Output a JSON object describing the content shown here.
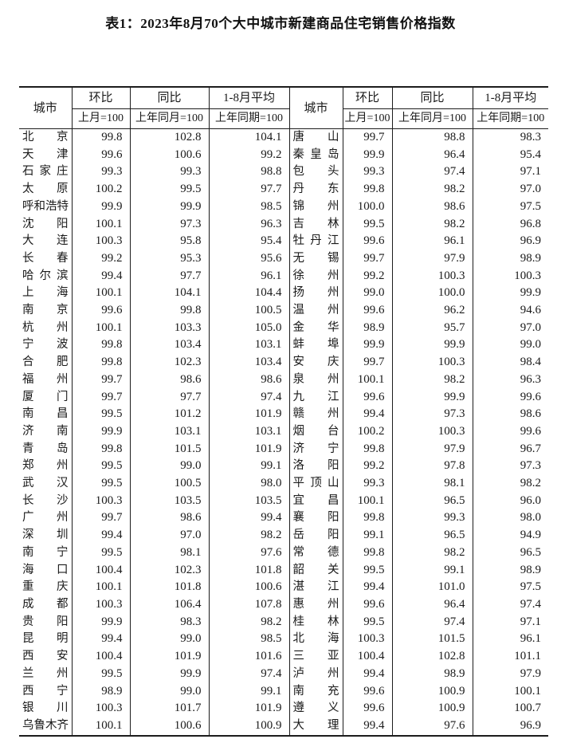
{
  "title": "表1：2023年8月70个大中城市新建商品住宅销售价格指数",
  "table": {
    "headers": {
      "city": "城市",
      "mom": "环比",
      "yoy": "同比",
      "avg": "1-8月平均",
      "mom_base": "上月=100",
      "yoy_base": "上年同月=100",
      "avg_base": "上年同期=100"
    },
    "left_rows": [
      {
        "city": "北京",
        "mom": "99.8",
        "yoy": "102.8",
        "avg": "104.1"
      },
      {
        "city": "天津",
        "mom": "99.6",
        "yoy": "100.6",
        "avg": "99.2"
      },
      {
        "city": "石家庄",
        "mom": "99.3",
        "yoy": "99.3",
        "avg": "98.8"
      },
      {
        "city": "太原",
        "mom": "100.2",
        "yoy": "99.5",
        "avg": "97.7"
      },
      {
        "city": "呼和浩特",
        "mom": "99.9",
        "yoy": "99.9",
        "avg": "98.5"
      },
      {
        "city": "沈阳",
        "mom": "100.1",
        "yoy": "97.3",
        "avg": "96.3"
      },
      {
        "city": "大连",
        "mom": "100.3",
        "yoy": "95.8",
        "avg": "95.4"
      },
      {
        "city": "长春",
        "mom": "99.2",
        "yoy": "95.3",
        "avg": "95.6"
      },
      {
        "city": "哈尔滨",
        "mom": "99.4",
        "yoy": "97.7",
        "avg": "96.1"
      },
      {
        "city": "上海",
        "mom": "100.1",
        "yoy": "104.1",
        "avg": "104.4"
      },
      {
        "city": "南京",
        "mom": "99.6",
        "yoy": "99.8",
        "avg": "100.5"
      },
      {
        "city": "杭州",
        "mom": "100.1",
        "yoy": "103.3",
        "avg": "105.0"
      },
      {
        "city": "宁波",
        "mom": "99.8",
        "yoy": "103.4",
        "avg": "103.1"
      },
      {
        "city": "合肥",
        "mom": "99.8",
        "yoy": "102.3",
        "avg": "103.4"
      },
      {
        "city": "福州",
        "mom": "99.7",
        "yoy": "98.6",
        "avg": "98.6"
      },
      {
        "city": "厦门",
        "mom": "99.7",
        "yoy": "97.7",
        "avg": "97.4"
      },
      {
        "city": "南昌",
        "mom": "99.5",
        "yoy": "101.2",
        "avg": "101.9"
      },
      {
        "city": "济南",
        "mom": "99.9",
        "yoy": "103.1",
        "avg": "103.1"
      },
      {
        "city": "青岛",
        "mom": "99.8",
        "yoy": "101.5",
        "avg": "101.9"
      },
      {
        "city": "郑州",
        "mom": "99.5",
        "yoy": "99.0",
        "avg": "99.1"
      },
      {
        "city": "武汉",
        "mom": "99.5",
        "yoy": "100.5",
        "avg": "98.0"
      },
      {
        "city": "长沙",
        "mom": "100.3",
        "yoy": "103.5",
        "avg": "103.5"
      },
      {
        "city": "广州",
        "mom": "99.7",
        "yoy": "98.6",
        "avg": "99.4"
      },
      {
        "city": "深圳",
        "mom": "99.4",
        "yoy": "97.0",
        "avg": "98.2"
      },
      {
        "city": "南宁",
        "mom": "99.5",
        "yoy": "98.1",
        "avg": "97.6"
      },
      {
        "city": "海口",
        "mom": "100.4",
        "yoy": "102.3",
        "avg": "101.8"
      },
      {
        "city": "重庆",
        "mom": "100.1",
        "yoy": "101.8",
        "avg": "100.6"
      },
      {
        "city": "成都",
        "mom": "100.3",
        "yoy": "106.4",
        "avg": "107.8"
      },
      {
        "city": "贵阳",
        "mom": "99.9",
        "yoy": "98.3",
        "avg": "98.2"
      },
      {
        "city": "昆明",
        "mom": "99.4",
        "yoy": "99.0",
        "avg": "98.5"
      },
      {
        "city": "西安",
        "mom": "100.4",
        "yoy": "101.9",
        "avg": "101.6"
      },
      {
        "city": "兰州",
        "mom": "99.5",
        "yoy": "99.9",
        "avg": "97.4"
      },
      {
        "city": "西宁",
        "mom": "98.9",
        "yoy": "99.0",
        "avg": "99.1"
      },
      {
        "city": "银川",
        "mom": "100.3",
        "yoy": "101.7",
        "avg": "101.9"
      },
      {
        "city": "乌鲁木齐",
        "mom": "100.1",
        "yoy": "100.6",
        "avg": "100.9"
      }
    ],
    "right_rows": [
      {
        "city": "唐山",
        "mom": "99.7",
        "yoy": "98.8",
        "avg": "98.3"
      },
      {
        "city": "秦皇岛",
        "mom": "99.9",
        "yoy": "96.4",
        "avg": "95.4"
      },
      {
        "city": "包头",
        "mom": "99.3",
        "yoy": "97.4",
        "avg": "97.1"
      },
      {
        "city": "丹东",
        "mom": "99.8",
        "yoy": "98.2",
        "avg": "97.0"
      },
      {
        "city": "锦州",
        "mom": "100.0",
        "yoy": "98.6",
        "avg": "97.5"
      },
      {
        "city": "吉林",
        "mom": "99.5",
        "yoy": "98.2",
        "avg": "96.8"
      },
      {
        "city": "牡丹江",
        "mom": "99.6",
        "yoy": "96.1",
        "avg": "96.9"
      },
      {
        "city": "无锡",
        "mom": "99.7",
        "yoy": "97.9",
        "avg": "98.9"
      },
      {
        "city": "徐州",
        "mom": "99.2",
        "yoy": "100.3",
        "avg": "100.3"
      },
      {
        "city": "扬州",
        "mom": "99.0",
        "yoy": "100.0",
        "avg": "99.9"
      },
      {
        "city": "温州",
        "mom": "99.6",
        "yoy": "96.2",
        "avg": "94.6"
      },
      {
        "city": "金华",
        "mom": "98.9",
        "yoy": "95.7",
        "avg": "97.0"
      },
      {
        "city": "蚌埠",
        "mom": "99.9",
        "yoy": "99.9",
        "avg": "99.0"
      },
      {
        "city": "安庆",
        "mom": "99.7",
        "yoy": "100.3",
        "avg": "98.4"
      },
      {
        "city": "泉州",
        "mom": "100.1",
        "yoy": "98.2",
        "avg": "96.3"
      },
      {
        "city": "九江",
        "mom": "99.6",
        "yoy": "99.9",
        "avg": "99.6"
      },
      {
        "city": "赣州",
        "mom": "99.4",
        "yoy": "97.3",
        "avg": "98.6"
      },
      {
        "city": "烟台",
        "mom": "100.2",
        "yoy": "100.3",
        "avg": "99.6"
      },
      {
        "city": "济宁",
        "mom": "99.8",
        "yoy": "97.9",
        "avg": "96.7"
      },
      {
        "city": "洛阳",
        "mom": "99.2",
        "yoy": "97.8",
        "avg": "97.3"
      },
      {
        "city": "平顶山",
        "mom": "99.3",
        "yoy": "98.1",
        "avg": "98.2"
      },
      {
        "city": "宜昌",
        "mom": "100.1",
        "yoy": "96.5",
        "avg": "96.0"
      },
      {
        "city": "襄阳",
        "mom": "99.8",
        "yoy": "99.3",
        "avg": "98.0"
      },
      {
        "city": "岳阳",
        "mom": "99.1",
        "yoy": "96.5",
        "avg": "94.9"
      },
      {
        "city": "常德",
        "mom": "99.8",
        "yoy": "98.2",
        "avg": "96.5"
      },
      {
        "city": "韶关",
        "mom": "99.5",
        "yoy": "99.1",
        "avg": "98.9"
      },
      {
        "city": "湛江",
        "mom": "99.4",
        "yoy": "101.0",
        "avg": "97.5"
      },
      {
        "city": "惠州",
        "mom": "99.6",
        "yoy": "96.4",
        "avg": "97.4"
      },
      {
        "city": "桂林",
        "mom": "99.5",
        "yoy": "97.4",
        "avg": "97.1"
      },
      {
        "city": "北海",
        "mom": "100.3",
        "yoy": "101.5",
        "avg": "96.1"
      },
      {
        "city": "三亚",
        "mom": "100.4",
        "yoy": "102.8",
        "avg": "101.1"
      },
      {
        "city": "泸州",
        "mom": "99.4",
        "yoy": "98.9",
        "avg": "97.9"
      },
      {
        "city": "南充",
        "mom": "99.6",
        "yoy": "100.9",
        "avg": "100.1"
      },
      {
        "city": "遵义",
        "mom": "99.6",
        "yoy": "100.9",
        "avg": "100.7"
      },
      {
        "city": "大理",
        "mom": "99.4",
        "yoy": "97.6",
        "avg": "96.9"
      }
    ]
  }
}
